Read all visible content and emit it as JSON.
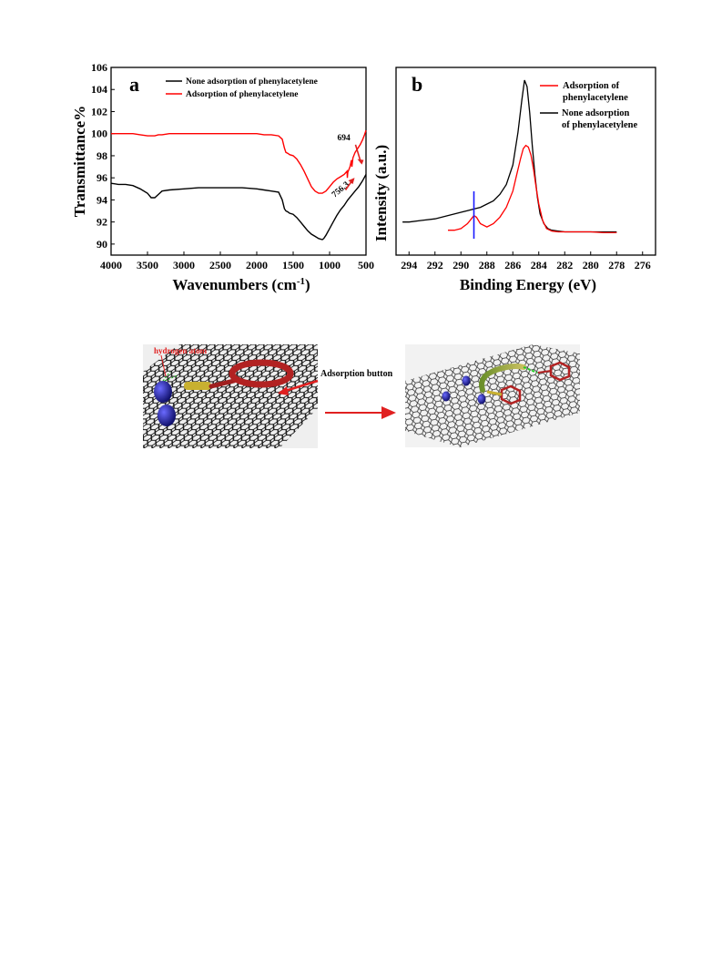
{
  "chart_data": [
    {
      "panel": "a",
      "type": "line",
      "xlabel": "Wavenumbers (cm",
      "xlabel_sup": "-1",
      "xlabel_end": ")",
      "ylabel": "Transmittance%",
      "xlim": [
        4000,
        500
      ],
      "ylim": [
        89,
        106
      ],
      "xticks": [
        4000,
        3500,
        3000,
        2500,
        2000,
        1500,
        1000,
        500
      ],
      "yticks": [
        90,
        92,
        94,
        96,
        98,
        100,
        102,
        104,
        106
      ],
      "legend_position": "top",
      "series": [
        {
          "name": "None adsorption of phenylacetylene",
          "color": "#000000",
          "x": [
            4000,
            3900,
            3800,
            3700,
            3600,
            3500,
            3450,
            3400,
            3350,
            3300,
            3200,
            3000,
            2800,
            2600,
            2400,
            2200,
            2000,
            1900,
            1800,
            1700,
            1650,
            1620,
            1600,
            1570,
            1550,
            1500,
            1450,
            1400,
            1350,
            1300,
            1250,
            1200,
            1150,
            1100,
            1080,
            1050,
            1000,
            950,
            900,
            850,
            800,
            750,
            700,
            650,
            600,
            550,
            500
          ],
          "y": [
            95.5,
            95.4,
            95.4,
            95.3,
            95.0,
            94.6,
            94.2,
            94.2,
            94.5,
            94.8,
            94.9,
            95.0,
            95.1,
            95.1,
            95.1,
            95.1,
            95.0,
            94.9,
            94.8,
            94.7,
            94.0,
            93.2,
            93.0,
            92.9,
            92.8,
            92.7,
            92.4,
            92.0,
            91.6,
            91.2,
            90.9,
            90.7,
            90.5,
            90.4,
            90.5,
            90.8,
            91.4,
            92.0,
            92.6,
            93.1,
            93.5,
            94.0,
            94.4,
            94.8,
            95.2,
            95.7,
            96.3
          ]
        },
        {
          "name": "Adsorption of phenylacetylene",
          "color": "#ff0000",
          "x": [
            4000,
            3900,
            3800,
            3700,
            3600,
            3500,
            3450,
            3400,
            3350,
            3300,
            3200,
            3000,
            2800,
            2600,
            2400,
            2200,
            2000,
            1900,
            1800,
            1700,
            1650,
            1620,
            1600,
            1570,
            1550,
            1500,
            1450,
            1400,
            1350,
            1300,
            1250,
            1200,
            1150,
            1100,
            1050,
            1000,
            950,
            900,
            850,
            800,
            760,
            756,
            750,
            720,
            700,
            694,
            680,
            650,
            620,
            600,
            580,
            550,
            520,
            500
          ],
          "y": [
            100.0,
            100.0,
            100.0,
            100.0,
            99.9,
            99.8,
            99.8,
            99.8,
            99.9,
            99.9,
            100.0,
            100.0,
            100.0,
            100.0,
            100.0,
            100.0,
            100.0,
            99.9,
            99.9,
            99.8,
            99.5,
            98.7,
            98.3,
            98.2,
            98.1,
            98.0,
            97.7,
            97.2,
            96.6,
            95.9,
            95.2,
            94.8,
            94.6,
            94.6,
            94.8,
            95.2,
            95.6,
            95.9,
            96.1,
            96.3,
            96.6,
            96.0,
            96.5,
            97.0,
            97.6,
            97.0,
            97.8,
            98.3,
            98.6,
            98.8,
            99.0,
            99.4,
            99.9,
            100.3
          ]
        }
      ],
      "annotations": [
        {
          "text": "694",
          "x": 694,
          "y": 97.2
        },
        {
          "text": "756.3",
          "x": 756,
          "y": 96.0
        }
      ]
    },
    {
      "panel": "b",
      "type": "line",
      "xlabel": "Binding Energy (eV)",
      "ylabel": "Intensity (a.u.)",
      "xlim": [
        295,
        275
      ],
      "xticks": [
        294,
        292,
        290,
        288,
        286,
        284,
        282,
        280,
        278,
        276
      ],
      "legend_position": "top-right",
      "series": [
        {
          "name": "Adsorption of phenylacetylene",
          "legend_lines": [
            "Adsorption of",
            "phenylacetylene"
          ],
          "color": "#ff0000",
          "x": [
            291.0,
            290.5,
            290.0,
            289.5,
            289.2,
            289.0,
            288.8,
            288.5,
            288.0,
            287.5,
            287.0,
            286.5,
            286.0,
            285.7,
            285.4,
            285.2,
            285.0,
            284.8,
            284.6,
            284.4,
            284.2,
            284.0,
            283.7,
            283.4,
            283.0,
            282.5,
            282.0,
            281.0,
            280.0,
            279.0,
            278.0
          ],
          "y": [
            0.08,
            0.08,
            0.09,
            0.12,
            0.15,
            0.17,
            0.16,
            0.12,
            0.1,
            0.12,
            0.16,
            0.22,
            0.32,
            0.42,
            0.52,
            0.58,
            0.6,
            0.59,
            0.54,
            0.45,
            0.34,
            0.24,
            0.14,
            0.09,
            0.075,
            0.07,
            0.07,
            0.07,
            0.07,
            0.065,
            0.065
          ]
        },
        {
          "name": "None adsorption of phenylacetylene",
          "legend_lines": [
            "None adsorption",
            "of phenylacetylene"
          ],
          "color": "#000000",
          "x": [
            294.5,
            294.0,
            293.0,
            292.0,
            291.0,
            290.0,
            289.5,
            289.0,
            288.5,
            288.0,
            287.5,
            287.0,
            286.5,
            286.0,
            285.6,
            285.3,
            285.1,
            284.9,
            284.7,
            284.5,
            284.3,
            284.1,
            283.9,
            283.6,
            283.3,
            283.0,
            282.5,
            282.0,
            281.0,
            280.0,
            279.0,
            278.0
          ],
          "y": [
            0.13,
            0.13,
            0.14,
            0.15,
            0.17,
            0.19,
            0.2,
            0.21,
            0.22,
            0.24,
            0.26,
            0.3,
            0.36,
            0.48,
            0.68,
            0.88,
            1.0,
            0.96,
            0.8,
            0.6,
            0.42,
            0.28,
            0.18,
            0.12,
            0.09,
            0.08,
            0.075,
            0.07,
            0.07,
            0.07,
            0.07,
            0.07
          ]
        }
      ],
      "marker_line": {
        "x": 289.0,
        "color": "#1a1aff"
      }
    }
  ],
  "panel_letters": {
    "a": "a",
    "b": "b"
  },
  "schematic": {
    "left_labels": {
      "hydrogen": "hydrogen atom",
      "button": "Adsorption button"
    },
    "colors": {
      "graphene": "#111111",
      "sphere": "#2a2ab8",
      "ring": "#b22222",
      "stick": "#c8b030",
      "arrow": "#e02020"
    }
  }
}
